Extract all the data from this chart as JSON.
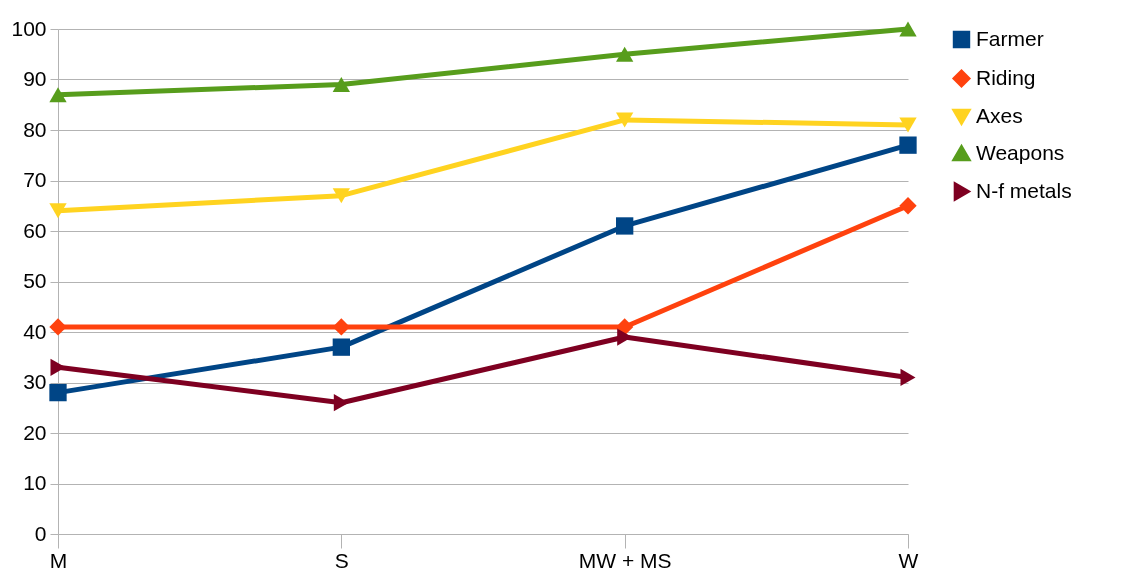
{
  "chart_data": {
    "type": "line",
    "categories": [
      "M",
      "S",
      "MW + MS",
      "W"
    ],
    "series": [
      {
        "name": "Farmer",
        "color": "#004586",
        "marker": "square",
        "values": [
          28,
          37,
          61,
          77
        ]
      },
      {
        "name": "Riding",
        "color": "#ff420e",
        "marker": "diamond",
        "values": [
          41,
          41,
          41,
          65
        ]
      },
      {
        "name": "Axes",
        "color": "#ffd320",
        "marker": "triangle-down",
        "values": [
          64,
          67,
          82,
          81
        ]
      },
      {
        "name": "Weapons",
        "color": "#579d1c",
        "marker": "triangle-up",
        "values": [
          87,
          89,
          95,
          100
        ]
      },
      {
        "name": "N-f metals",
        "color": "#7e0021",
        "marker": "triangle-right",
        "values": [
          33,
          26,
          39,
          31
        ]
      }
    ],
    "ylim": [
      0,
      100
    ],
    "yticks": [
      0,
      10,
      20,
      30,
      40,
      50,
      60,
      70,
      80,
      90,
      100
    ],
    "grid": "y",
    "legend": "right",
    "line_style": "solid"
  }
}
